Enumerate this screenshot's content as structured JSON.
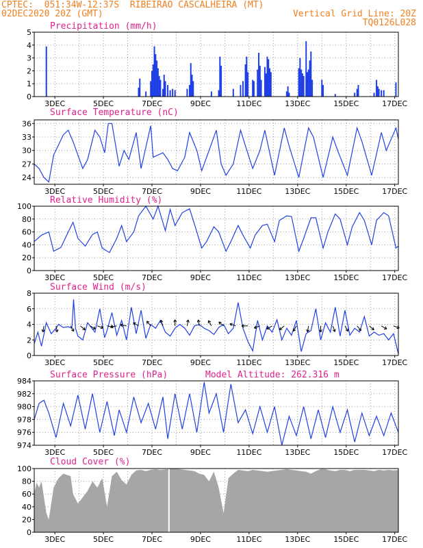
{
  "header": {
    "line1_left": "CPTEC:  051:34W-12:37S  RIBEIRAO CASCALHEIRA (MT)",
    "line2_left": "02DEC2020 20Z (GMT)",
    "line2_right": "Vertical Grid Line: 20Z",
    "line3_right": "TQ0126L028"
  },
  "chart_data": [
    {
      "type": "bar",
      "title": "Precipitation (mm/h)",
      "ylim": [
        0,
        5
      ],
      "yticks": [
        0,
        1,
        2,
        3,
        4,
        5
      ],
      "x_tick_labels": [
        "3DEC",
        "5DEC",
        "7DEC",
        "9DEC",
        "11DEC",
        "13DEC",
        "15DEC",
        "17DEC"
      ],
      "bars": [
        [
          2.5,
          3.9
        ],
        [
          6.3,
          0.7
        ],
        [
          6.35,
          1.4
        ],
        [
          6.6,
          0.4
        ],
        [
          6.8,
          1.2
        ],
        [
          6.85,
          2.0
        ],
        [
          6.9,
          2.5
        ],
        [
          6.95,
          3.9
        ],
        [
          7.0,
          3.3
        ],
        [
          7.05,
          2.8
        ],
        [
          7.1,
          2.2
        ],
        [
          7.15,
          1.6
        ],
        [
          7.2,
          1.3
        ],
        [
          7.3,
          0.6
        ],
        [
          7.35,
          1.7
        ],
        [
          7.4,
          1.2
        ],
        [
          7.5,
          0.9
        ],
        [
          7.6,
          0.5
        ],
        [
          7.7,
          0.6
        ],
        [
          7.8,
          0.5
        ],
        [
          8.3,
          0.6
        ],
        [
          8.4,
          0.9
        ],
        [
          8.45,
          2.6
        ],
        [
          8.5,
          1.7
        ],
        [
          8.55,
          1.2
        ],
        [
          9.3,
          0.4
        ],
        [
          9.6,
          0.5
        ],
        [
          9.65,
          3.1
        ],
        [
          9.7,
          2.4
        ],
        [
          10.2,
          0.6
        ],
        [
          10.5,
          0.9
        ],
        [
          10.6,
          1.2
        ],
        [
          10.7,
          2.5
        ],
        [
          10.75,
          3.1
        ],
        [
          10.8,
          1.9
        ],
        [
          11.0,
          1.3
        ],
        [
          11.05,
          1.2
        ],
        [
          11.2,
          2.1
        ],
        [
          11.25,
          3.4
        ],
        [
          11.3,
          2.4
        ],
        [
          11.35,
          1.3
        ],
        [
          11.5,
          2.3
        ],
        [
          11.55,
          1.8
        ],
        [
          11.6,
          3.1
        ],
        [
          11.65,
          2.9
        ],
        [
          11.7,
          2.2
        ],
        [
          11.75,
          1.9
        ],
        [
          12.4,
          0.4
        ],
        [
          12.45,
          0.8
        ],
        [
          12.5,
          0.3
        ],
        [
          12.9,
          2.2
        ],
        [
          12.95,
          3.0
        ],
        [
          13.0,
          2.1
        ],
        [
          13.05,
          1.8
        ],
        [
          13.1,
          1.6
        ],
        [
          13.2,
          4.3
        ],
        [
          13.25,
          1.9
        ],
        [
          13.3,
          2.1
        ],
        [
          13.35,
          2.8
        ],
        [
          13.4,
          3.5
        ],
        [
          13.45,
          1.3
        ],
        [
          13.85,
          1.3
        ],
        [
          13.9,
          0.9
        ],
        [
          14.4,
          0.2
        ],
        [
          15.2,
          0.3
        ],
        [
          15.3,
          0.6
        ],
        [
          15.35,
          0.9
        ],
        [
          16.0,
          0.3
        ],
        [
          16.1,
          1.3
        ],
        [
          16.15,
          0.8
        ],
        [
          16.2,
          0.6
        ],
        [
          16.3,
          0.5
        ],
        [
          16.4,
          0.5
        ],
        [
          16.9,
          1.1
        ]
      ]
    },
    {
      "type": "line",
      "title": "Surface Temperature (nC)",
      "ylim": [
        22.5,
        36.8
      ],
      "yticks": [
        24,
        27,
        30,
        33,
        36
      ],
      "x_tick_labels": [
        "3DEC",
        "5DEC",
        "7DEC",
        "9DEC",
        "11DEC",
        "13DEC",
        "15DEC",
        "17DEC"
      ],
      "x": [
        2.0,
        2.2,
        2.4,
        2.6,
        2.8,
        3.2,
        3.4,
        3.6,
        3.8,
        4.0,
        4.2,
        4.5,
        4.7,
        4.9,
        5.05,
        5.2,
        5.5,
        5.7,
        5.9,
        6.2,
        6.4,
        6.8,
        6.9,
        7.3,
        7.5,
        7.7,
        7.9,
        8.2,
        8.4,
        8.7,
        8.9,
        9.2,
        9.5,
        9.7,
        9.9,
        10.2,
        10.5,
        10.7,
        11.0,
        11.3,
        11.5,
        11.9,
        12.3,
        12.5,
        12.9,
        13.3,
        13.5,
        13.9,
        14.3,
        14.5,
        14.9,
        15.3,
        15.5,
        15.9,
        16.3,
        16.5,
        16.9,
        17.0
      ],
      "y": [
        27.0,
        26.0,
        24.0,
        23.0,
        29.0,
        33.5,
        34.5,
        32.0,
        29.0,
        26.0,
        28.0,
        34.5,
        33.0,
        29.5,
        36.0,
        36.0,
        26.5,
        30.0,
        28.0,
        34.0,
        26.0,
        35.5,
        28.5,
        29.5,
        28.0,
        26.0,
        25.5,
        28.5,
        34.0,
        30.0,
        25.5,
        30.0,
        34.5,
        27.0,
        24.5,
        27.0,
        34.5,
        31.0,
        26.0,
        30.0,
        34.5,
        24.5,
        35.0,
        31.0,
        24.0,
        35.0,
        33.0,
        24.0,
        33.0,
        30.0,
        24.5,
        35.0,
        32.0,
        24.5,
        34.0,
        30.0,
        35.0,
        32.5
      ]
    },
    {
      "type": "line",
      "title": "Relative Humidity (%)",
      "ylim": [
        0,
        100
      ],
      "yticks": [
        0,
        20,
        40,
        60,
        80,
        100
      ],
      "x_tick_labels": [
        "3DEC",
        "5DEC",
        "7DEC",
        "9DEC",
        "11DEC",
        "13DEC",
        "15DEC",
        "17DEC"
      ],
      "x": [
        2.0,
        2.3,
        2.6,
        2.8,
        3.1,
        3.4,
        3.6,
        3.8,
        4.1,
        4.4,
        4.6,
        4.8,
        5.1,
        5.4,
        5.6,
        5.8,
        6.1,
        6.3,
        6.6,
        6.9,
        7.1,
        7.4,
        7.6,
        7.8,
        8.1,
        8.4,
        8.6,
        8.9,
        9.1,
        9.4,
        9.6,
        9.9,
        10.1,
        10.4,
        10.6,
        10.9,
        11.1,
        11.4,
        11.6,
        11.9,
        12.1,
        12.4,
        12.6,
        12.9,
        13.1,
        13.4,
        13.6,
        13.9,
        14.1,
        14.4,
        14.6,
        14.9,
        15.1,
        15.4,
        15.6,
        15.9,
        16.1,
        16.4,
        16.6,
        16.9,
        17.0
      ],
      "y": [
        45,
        55,
        60,
        30,
        36,
        60,
        75,
        50,
        38,
        56,
        60,
        35,
        28,
        50,
        70,
        45,
        60,
        85,
        100,
        80,
        100,
        62,
        95,
        70,
        90,
        96,
        72,
        35,
        45,
        68,
        60,
        30,
        45,
        70,
        55,
        35,
        55,
        70,
        72,
        45,
        78,
        85,
        84,
        30,
        50,
        82,
        82,
        35,
        60,
        88,
        80,
        40,
        68,
        90,
        78,
        40,
        78,
        90,
        85,
        35,
        38
      ]
    },
    {
      "type": "line",
      "title": "Surface Wind (m/s)",
      "ylim": [
        0,
        8
      ],
      "yticks": [
        0,
        2,
        4,
        6,
        8
      ],
      "x_tick_labels": [
        "3DEC",
        "5DEC",
        "7DEC",
        "9DEC",
        "11DEC",
        "13DEC",
        "15DEC",
        "17DEC"
      ],
      "x": [
        2.0,
        2.15,
        2.3,
        2.5,
        2.7,
        2.9,
        3.0,
        3.2,
        3.4,
        3.55,
        3.62,
        3.7,
        3.8,
        4.0,
        4.2,
        4.5,
        4.7,
        4.9,
        5.0,
        5.2,
        5.4,
        5.6,
        5.8,
        6.0,
        6.2,
        6.4,
        6.6,
        6.8,
        7.0,
        7.2,
        7.4,
        7.6,
        7.8,
        8.0,
        8.2,
        8.4,
        8.6,
        8.8,
        9.0,
        9.2,
        9.4,
        9.6,
        9.8,
        10.0,
        10.2,
        10.4,
        10.6,
        10.8,
        11.0,
        11.2,
        11.4,
        11.6,
        11.8,
        12.0,
        12.2,
        12.4,
        12.6,
        12.8,
        13.0,
        13.2,
        13.4,
        13.6,
        13.8,
        14.0,
        14.2,
        14.4,
        14.6,
        14.8,
        15.0,
        15.2,
        15.4,
        15.6,
        15.8,
        16.0,
        16.2,
        16.4,
        16.6,
        16.8,
        17.0
      ],
      "y": [
        1.5,
        3.0,
        1.2,
        4.2,
        2.8,
        3.5,
        4.0,
        3.6,
        3.7,
        3.5,
        7.2,
        3.5,
        2.5,
        2.0,
        4.2,
        3.0,
        6.0,
        2.3,
        3.2,
        5.5,
        2.6,
        4.5,
        2.0,
        6.2,
        2.8,
        5.8,
        2.2,
        4.0,
        3.5,
        4.5,
        3.0,
        2.5,
        3.5,
        4.0,
        3.5,
        2.6,
        3.8,
        4.0,
        3.5,
        3.2,
        2.7,
        3.6,
        4.0,
        2.8,
        3.5,
        6.8,
        3.5,
        1.8,
        0.6,
        4.5,
        2.0,
        3.8,
        3.0,
        4.6,
        2.0,
        3.5,
        2.6,
        4.5,
        0.5,
        2.8,
        3.2,
        6.0,
        2.0,
        4.2,
        3.0,
        6.2,
        2.5,
        5.8,
        2.6,
        3.5,
        3.0,
        5.0,
        2.5,
        3.0,
        2.6,
        2.8,
        2.0,
        2.8,
        0.2
      ]
    },
    {
      "type": "line",
      "title": "Surface Pressure (hPa)",
      "annotation": "Model Altitude: 262.316 m",
      "ylim": [
        974,
        984
      ],
      "yticks": [
        974,
        976,
        978,
        980,
        982,
        984
      ],
      "x_tick_labels": [
        "3DEC",
        "5DEC",
        "7DEC",
        "9DEC",
        "11DEC",
        "13DEC",
        "15DEC",
        "17DEC"
      ],
      "x": [
        2.0,
        2.2,
        2.4,
        2.6,
        2.9,
        3.2,
        3.5,
        3.8,
        4.1,
        4.4,
        4.7,
        5.0,
        5.3,
        5.5,
        5.8,
        6.1,
        6.4,
        6.7,
        7.0,
        7.3,
        7.5,
        7.8,
        8.1,
        8.4,
        8.7,
        9.0,
        9.2,
        9.5,
        9.8,
        10.1,
        10.4,
        10.7,
        11.0,
        11.3,
        11.6,
        11.9,
        12.2,
        12.5,
        12.8,
        13.1,
        13.4,
        13.7,
        14.0,
        14.3,
        14.6,
        14.9,
        15.2,
        15.5,
        15.8,
        16.1,
        16.4,
        16.7,
        17.0
      ],
      "y": [
        978,
        980.5,
        981,
        979,
        975.2,
        980.5,
        977,
        981.8,
        976.5,
        982,
        976,
        980.8,
        975.5,
        979.5,
        976,
        981.5,
        977.5,
        980.5,
        976.5,
        981.5,
        975,
        982,
        976.5,
        982,
        976,
        983.8,
        979,
        982,
        976,
        983.5,
        977.5,
        979.5,
        975.8,
        980,
        976,
        980,
        974,
        978.5,
        975.5,
        980,
        975,
        979.5,
        975.2,
        980,
        976,
        979.5,
        974.5,
        979,
        975.5,
        978.5,
        975.5,
        979,
        976
      ]
    },
    {
      "type": "bar",
      "title": "Cloud Cover (%)",
      "ylim": [
        0,
        100
      ],
      "yticks": [
        0,
        20,
        40,
        60,
        80,
        100
      ],
      "x_tick_labels": [
        "3DEC",
        "5DEC",
        "7DEC",
        "9DEC",
        "11DEC",
        "13DEC",
        "15DEC",
        "17DEC"
      ],
      "x": [
        2.0,
        2.1,
        2.2,
        2.3,
        2.4,
        2.5,
        2.6,
        2.7,
        2.8,
        3.0,
        3.2,
        3.5,
        3.6,
        3.8,
        4.0,
        4.2,
        4.4,
        4.6,
        4.8,
        5.0,
        5.2,
        5.4,
        5.6,
        5.8,
        6.0,
        6.2,
        6.4,
        6.6,
        6.8,
        7.0,
        7.2,
        7.5,
        7.8,
        8.0,
        8.2,
        8.4,
        8.6,
        8.8,
        9.0,
        9.2,
        9.4,
        9.6,
        9.8,
        10.0,
        10.2,
        10.4,
        10.6,
        10.8,
        11.0,
        11.2,
        11.4,
        11.6,
        11.8,
        12.0,
        12.2,
        12.4,
        12.6,
        12.8,
        13.0,
        13.2,
        13.4,
        13.6,
        13.8,
        14.0,
        14.2,
        14.4,
        14.6,
        14.8,
        15.0,
        15.2,
        15.4,
        15.6,
        15.8,
        16.0,
        16.2,
        16.4,
        16.6,
        16.8,
        17.0
      ],
      "y": [
        62,
        78,
        70,
        80,
        55,
        30,
        20,
        45,
        70,
        85,
        92,
        88,
        60,
        45,
        55,
        65,
        80,
        70,
        85,
        40,
        88,
        95,
        82,
        75,
        90,
        97,
        98,
        96,
        98,
        99,
        98,
        99,
        100,
        99,
        98,
        97,
        96,
        92,
        90,
        80,
        95,
        70,
        30,
        85,
        92,
        98,
        97,
        96,
        98,
        97,
        96,
        95,
        96,
        97,
        98,
        99,
        98,
        97,
        96,
        95,
        92,
        96,
        99,
        99,
        97,
        96,
        98,
        98,
        96,
        98,
        98,
        98,
        97,
        96,
        98,
        97,
        98,
        97,
        98
      ]
    }
  ]
}
